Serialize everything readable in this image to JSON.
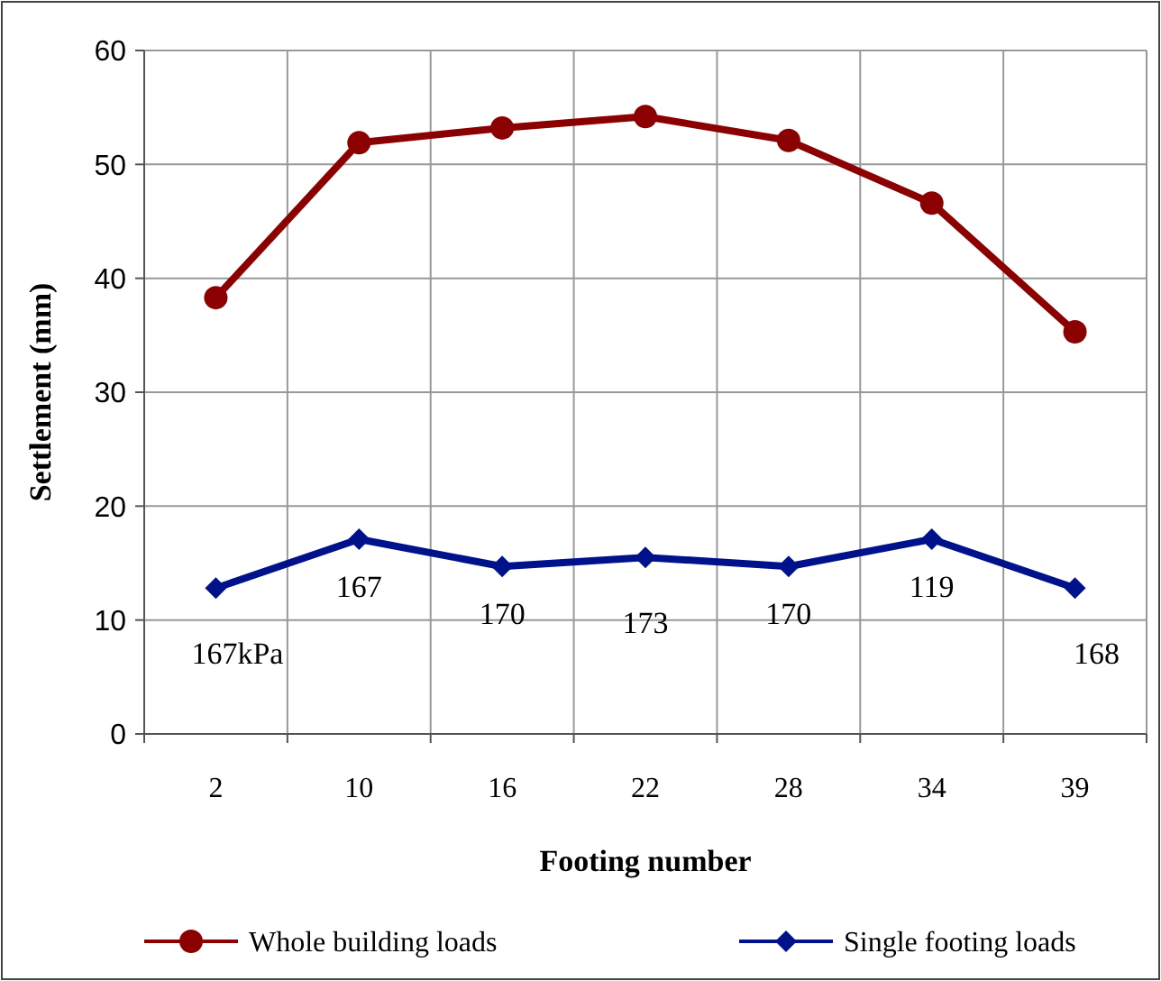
{
  "chart_data": {
    "type": "line",
    "xlabel": "Footing number",
    "ylabel": "Settlement (mm)",
    "categories": [
      "2",
      "10",
      "16",
      "22",
      "28",
      "34",
      "39"
    ],
    "ylim": [
      0,
      60
    ],
    "yticks": [
      0,
      10,
      20,
      30,
      40,
      50,
      60
    ],
    "grid": true,
    "legend": "bottom",
    "series": [
      {
        "name": "Whole building loads",
        "color": "#8b0000",
        "marker": "circle",
        "values": [
          38.3,
          51.9,
          53.2,
          54.2,
          52.1,
          46.6,
          35.3
        ]
      },
      {
        "name": "Single footing loads",
        "color": "#00128b",
        "marker": "diamond",
        "values": [
          12.8,
          17.1,
          14.7,
          15.5,
          14.7,
          17.1,
          12.8
        ]
      }
    ],
    "annotations": [
      "167kPa",
      "167",
      "170",
      "173",
      "170",
      "119",
      "168"
    ]
  }
}
